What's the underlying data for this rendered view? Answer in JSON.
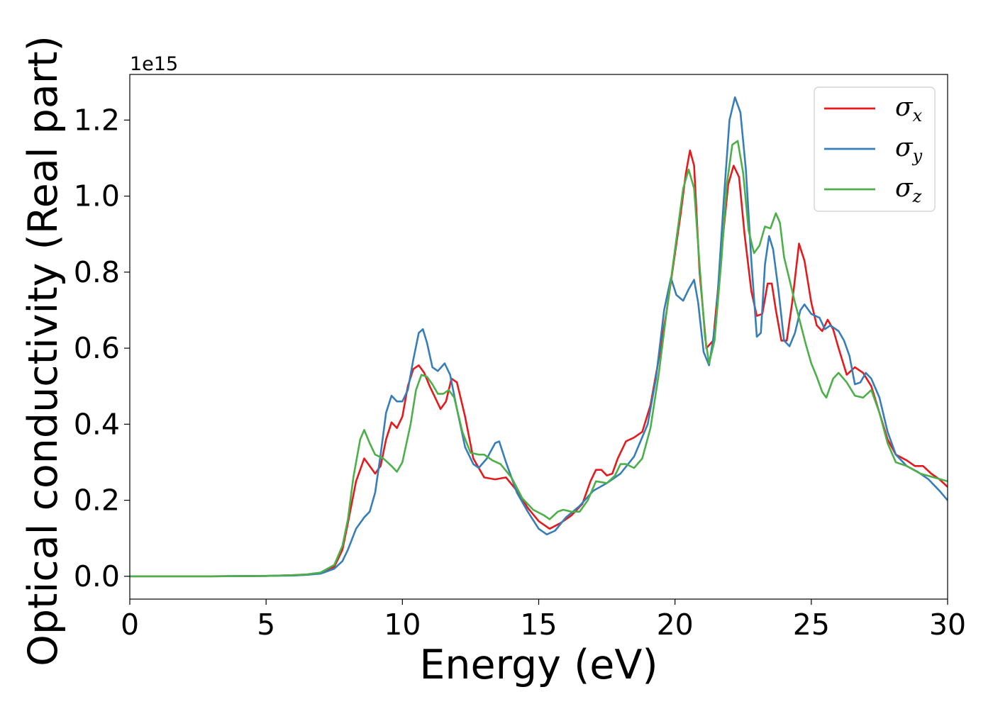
{
  "chart_data": {
    "type": "line",
    "xlabel": "Energy (eV)",
    "ylabel": "Optical conductivity (Real part)",
    "y_offset_label": "1e15",
    "xlim": [
      0,
      30
    ],
    "ylim": [
      -0.06,
      1.32
    ],
    "x_ticks": [
      0,
      5,
      10,
      15,
      20,
      25,
      30
    ],
    "x_tick_labels": [
      "0",
      "5",
      "10",
      "15",
      "20",
      "25",
      "30"
    ],
    "y_ticks": [
      0.0,
      0.2,
      0.4,
      0.6,
      0.8,
      1.0,
      1.2
    ],
    "y_tick_labels": [
      "0.0",
      "0.2",
      "0.4",
      "0.6",
      "0.8",
      "1.0",
      "1.2"
    ],
    "grid": false,
    "legend_position": "top-right",
    "series": [
      {
        "name": "σ",
        "subscript": "x",
        "color": "#e41a1c",
        "points": [
          [
            0,
            0
          ],
          [
            3,
            0
          ],
          [
            5,
            0.001
          ],
          [
            6,
            0.003
          ],
          [
            6.5,
            0.004
          ],
          [
            7,
            0.008
          ],
          [
            7.5,
            0.025
          ],
          [
            7.8,
            0.07
          ],
          [
            8,
            0.14
          ],
          [
            8.3,
            0.25
          ],
          [
            8.6,
            0.31
          ],
          [
            8.8,
            0.29
          ],
          [
            9.0,
            0.27
          ],
          [
            9.2,
            0.29
          ],
          [
            9.4,
            0.36
          ],
          [
            9.6,
            0.405
          ],
          [
            9.8,
            0.39
          ],
          [
            10.0,
            0.42
          ],
          [
            10.2,
            0.5
          ],
          [
            10.4,
            0.545
          ],
          [
            10.6,
            0.555
          ],
          [
            10.8,
            0.535
          ],
          [
            11.0,
            0.5
          ],
          [
            11.2,
            0.47
          ],
          [
            11.4,
            0.44
          ],
          [
            11.6,
            0.46
          ],
          [
            11.8,
            0.52
          ],
          [
            12.0,
            0.51
          ],
          [
            12.3,
            0.42
          ],
          [
            12.6,
            0.31
          ],
          [
            13.0,
            0.26
          ],
          [
            13.4,
            0.255
          ],
          [
            13.8,
            0.26
          ],
          [
            14.2,
            0.225
          ],
          [
            14.6,
            0.18
          ],
          [
            15.0,
            0.145
          ],
          [
            15.4,
            0.125
          ],
          [
            15.8,
            0.14
          ],
          [
            16.2,
            0.16
          ],
          [
            16.6,
            0.19
          ],
          [
            16.9,
            0.25
          ],
          [
            17.1,
            0.28
          ],
          [
            17.3,
            0.28
          ],
          [
            17.5,
            0.265
          ],
          [
            17.7,
            0.27
          ],
          [
            17.9,
            0.31
          ],
          [
            18.2,
            0.355
          ],
          [
            18.5,
            0.365
          ],
          [
            18.8,
            0.38
          ],
          [
            19.1,
            0.45
          ],
          [
            19.4,
            0.57
          ],
          [
            19.7,
            0.7
          ],
          [
            20.0,
            0.85
          ],
          [
            20.2,
            0.95
          ],
          [
            20.4,
            1.06
          ],
          [
            20.55,
            1.12
          ],
          [
            20.7,
            1.08
          ],
          [
            20.9,
            0.8
          ],
          [
            21.15,
            0.6
          ],
          [
            21.4,
            0.62
          ],
          [
            21.7,
            0.85
          ],
          [
            21.95,
            1.03
          ],
          [
            22.15,
            1.08
          ],
          [
            22.35,
            1.05
          ],
          [
            22.55,
            0.9
          ],
          [
            22.8,
            0.75
          ],
          [
            23.0,
            0.685
          ],
          [
            23.2,
            0.69
          ],
          [
            23.4,
            0.77
          ],
          [
            23.55,
            0.77
          ],
          [
            23.7,
            0.7
          ],
          [
            23.9,
            0.62
          ],
          [
            24.1,
            0.62
          ],
          [
            24.3,
            0.72
          ],
          [
            24.55,
            0.875
          ],
          [
            24.75,
            0.83
          ],
          [
            25.0,
            0.72
          ],
          [
            25.2,
            0.66
          ],
          [
            25.4,
            0.645
          ],
          [
            25.6,
            0.675
          ],
          [
            25.8,
            0.65
          ],
          [
            26.0,
            0.6
          ],
          [
            26.3,
            0.53
          ],
          [
            26.6,
            0.55
          ],
          [
            26.9,
            0.535
          ],
          [
            27.2,
            0.5
          ],
          [
            27.5,
            0.43
          ],
          [
            27.8,
            0.36
          ],
          [
            28.1,
            0.32
          ],
          [
            28.5,
            0.305
          ],
          [
            28.8,
            0.29
          ],
          [
            29.1,
            0.29
          ],
          [
            29.4,
            0.27
          ],
          [
            29.7,
            0.255
          ],
          [
            30.0,
            0.235
          ]
        ]
      },
      {
        "name": "σ",
        "subscript": "y",
        "color": "#377eb8",
        "points": [
          [
            0,
            0
          ],
          [
            3,
            0
          ],
          [
            5,
            0.001
          ],
          [
            6,
            0.002
          ],
          [
            6.5,
            0.004
          ],
          [
            7,
            0.007
          ],
          [
            7.5,
            0.02
          ],
          [
            7.8,
            0.04
          ],
          [
            8,
            0.07
          ],
          [
            8.3,
            0.125
          ],
          [
            8.6,
            0.155
          ],
          [
            8.8,
            0.17
          ],
          [
            9.0,
            0.22
          ],
          [
            9.2,
            0.32
          ],
          [
            9.4,
            0.43
          ],
          [
            9.6,
            0.475
          ],
          [
            9.8,
            0.46
          ],
          [
            10.0,
            0.46
          ],
          [
            10.2,
            0.49
          ],
          [
            10.4,
            0.57
          ],
          [
            10.6,
            0.64
          ],
          [
            10.75,
            0.65
          ],
          [
            10.9,
            0.615
          ],
          [
            11.1,
            0.55
          ],
          [
            11.3,
            0.54
          ],
          [
            11.55,
            0.56
          ],
          [
            11.75,
            0.53
          ],
          [
            12.0,
            0.44
          ],
          [
            12.3,
            0.34
          ],
          [
            12.6,
            0.295
          ],
          [
            12.8,
            0.285
          ],
          [
            13.1,
            0.31
          ],
          [
            13.4,
            0.35
          ],
          [
            13.55,
            0.355
          ],
          [
            13.8,
            0.3
          ],
          [
            14.2,
            0.22
          ],
          [
            14.6,
            0.17
          ],
          [
            15.0,
            0.125
          ],
          [
            15.3,
            0.11
          ],
          [
            15.6,
            0.12
          ],
          [
            16.0,
            0.155
          ],
          [
            16.5,
            0.185
          ],
          [
            17.0,
            0.225
          ],
          [
            17.5,
            0.245
          ],
          [
            18.0,
            0.27
          ],
          [
            18.5,
            0.315
          ],
          [
            19.0,
            0.4
          ],
          [
            19.3,
            0.52
          ],
          [
            19.6,
            0.7
          ],
          [
            19.85,
            0.785
          ],
          [
            20.05,
            0.74
          ],
          [
            20.3,
            0.725
          ],
          [
            20.5,
            0.755
          ],
          [
            20.7,
            0.78
          ],
          [
            20.85,
            0.72
          ],
          [
            21.05,
            0.59
          ],
          [
            21.25,
            0.555
          ],
          [
            21.5,
            0.67
          ],
          [
            21.8,
            1.0
          ],
          [
            22.0,
            1.2
          ],
          [
            22.2,
            1.26
          ],
          [
            22.4,
            1.22
          ],
          [
            22.6,
            1.07
          ],
          [
            22.8,
            0.83
          ],
          [
            23.0,
            0.63
          ],
          [
            23.15,
            0.64
          ],
          [
            23.3,
            0.82
          ],
          [
            23.45,
            0.895
          ],
          [
            23.6,
            0.86
          ],
          [
            23.8,
            0.75
          ],
          [
            24.0,
            0.62
          ],
          [
            24.2,
            0.605
          ],
          [
            24.4,
            0.64
          ],
          [
            24.6,
            0.7
          ],
          [
            24.75,
            0.715
          ],
          [
            25.0,
            0.69
          ],
          [
            25.3,
            0.68
          ],
          [
            25.5,
            0.65
          ],
          [
            25.7,
            0.66
          ],
          [
            26.0,
            0.645
          ],
          [
            26.2,
            0.62
          ],
          [
            26.4,
            0.58
          ],
          [
            26.6,
            0.505
          ],
          [
            26.8,
            0.51
          ],
          [
            27.0,
            0.535
          ],
          [
            27.2,
            0.52
          ],
          [
            27.5,
            0.47
          ],
          [
            27.8,
            0.38
          ],
          [
            28.1,
            0.32
          ],
          [
            28.5,
            0.29
          ],
          [
            28.9,
            0.275
          ],
          [
            29.3,
            0.255
          ],
          [
            29.7,
            0.225
          ],
          [
            30.0,
            0.2
          ]
        ]
      },
      {
        "name": "σ",
        "subscript": "z",
        "color": "#4daf4a",
        "points": [
          [
            0,
            0
          ],
          [
            3,
            0
          ],
          [
            5,
            0.001
          ],
          [
            6,
            0.003
          ],
          [
            6.5,
            0.005
          ],
          [
            7,
            0.01
          ],
          [
            7.5,
            0.03
          ],
          [
            7.8,
            0.08
          ],
          [
            8.0,
            0.15
          ],
          [
            8.2,
            0.26
          ],
          [
            8.45,
            0.36
          ],
          [
            8.6,
            0.385
          ],
          [
            8.8,
            0.35
          ],
          [
            9.0,
            0.32
          ],
          [
            9.3,
            0.31
          ],
          [
            9.6,
            0.29
          ],
          [
            9.8,
            0.275
          ],
          [
            10.0,
            0.3
          ],
          [
            10.3,
            0.4
          ],
          [
            10.5,
            0.49
          ],
          [
            10.7,
            0.53
          ],
          [
            10.9,
            0.525
          ],
          [
            11.1,
            0.505
          ],
          [
            11.3,
            0.48
          ],
          [
            11.5,
            0.48
          ],
          [
            11.7,
            0.49
          ],
          [
            11.9,
            0.47
          ],
          [
            12.2,
            0.38
          ],
          [
            12.5,
            0.325
          ],
          [
            12.8,
            0.32
          ],
          [
            13.0,
            0.32
          ],
          [
            13.3,
            0.305
          ],
          [
            13.6,
            0.295
          ],
          [
            14.0,
            0.26
          ],
          [
            14.4,
            0.205
          ],
          [
            14.8,
            0.175
          ],
          [
            15.2,
            0.16
          ],
          [
            15.4,
            0.15
          ],
          [
            15.7,
            0.17
          ],
          [
            15.9,
            0.175
          ],
          [
            16.2,
            0.17
          ],
          [
            16.5,
            0.17
          ],
          [
            16.8,
            0.2
          ],
          [
            17.1,
            0.25
          ],
          [
            17.5,
            0.245
          ],
          [
            17.8,
            0.265
          ],
          [
            18.0,
            0.295
          ],
          [
            18.2,
            0.295
          ],
          [
            18.5,
            0.285
          ],
          [
            18.8,
            0.31
          ],
          [
            19.1,
            0.39
          ],
          [
            19.4,
            0.53
          ],
          [
            19.7,
            0.7
          ],
          [
            20.0,
            0.86
          ],
          [
            20.3,
            1.02
          ],
          [
            20.5,
            1.07
          ],
          [
            20.7,
            1.02
          ],
          [
            20.9,
            0.82
          ],
          [
            21.1,
            0.63
          ],
          [
            21.25,
            0.56
          ],
          [
            21.45,
            0.62
          ],
          [
            21.7,
            0.83
          ],
          [
            21.9,
            1.03
          ],
          [
            22.1,
            1.135
          ],
          [
            22.3,
            1.145
          ],
          [
            22.5,
            1.06
          ],
          [
            22.7,
            0.91
          ],
          [
            22.9,
            0.85
          ],
          [
            23.1,
            0.87
          ],
          [
            23.3,
            0.92
          ],
          [
            23.5,
            0.915
          ],
          [
            23.7,
            0.955
          ],
          [
            23.85,
            0.93
          ],
          [
            24.0,
            0.84
          ],
          [
            24.2,
            0.78
          ],
          [
            24.4,
            0.72
          ],
          [
            24.6,
            0.665
          ],
          [
            24.8,
            0.61
          ],
          [
            25.0,
            0.56
          ],
          [
            25.2,
            0.525
          ],
          [
            25.4,
            0.485
          ],
          [
            25.55,
            0.47
          ],
          [
            25.8,
            0.52
          ],
          [
            26.0,
            0.535
          ],
          [
            26.3,
            0.51
          ],
          [
            26.6,
            0.475
          ],
          [
            26.9,
            0.47
          ],
          [
            27.2,
            0.49
          ],
          [
            27.5,
            0.43
          ],
          [
            27.8,
            0.35
          ],
          [
            28.1,
            0.3
          ],
          [
            28.5,
            0.29
          ],
          [
            29.0,
            0.27
          ],
          [
            29.5,
            0.26
          ],
          [
            30.0,
            0.25
          ]
        ]
      }
    ]
  }
}
